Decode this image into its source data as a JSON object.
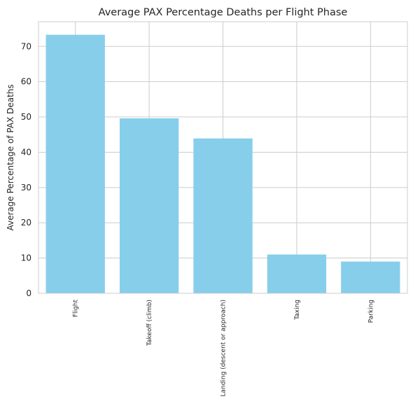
{
  "chart_data": {
    "type": "bar",
    "title": "Average PAX Percentage Deaths per Flight Phase",
    "xlabel": "",
    "ylabel": "Average Percentage of PAX Deaths",
    "categories": [
      "Flight",
      "Takeoff (climb)",
      "Landing (descent or approach)",
      "Taxing",
      "Parking"
    ],
    "values": [
      73.3,
      49.6,
      43.9,
      11.0,
      9.0
    ],
    "ylim": [
      0,
      77
    ],
    "yticks": [
      0,
      10,
      20,
      30,
      40,
      50,
      60,
      70
    ],
    "grid": true,
    "bar_color": "#87ceeb",
    "grid_color": "#cccccc",
    "legend": "none"
  }
}
